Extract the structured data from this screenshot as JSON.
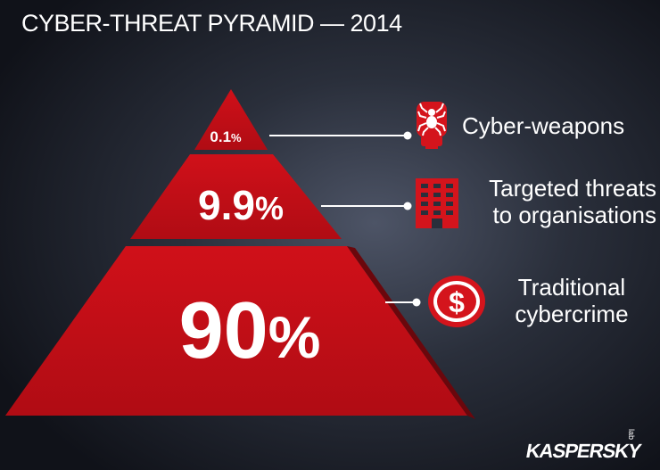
{
  "title": "CYBER-THREAT PYRAMID — 2014",
  "tiers": [
    {
      "value": "0.1",
      "unit": "%",
      "label_lines": [
        "Cyber-weapons"
      ],
      "icon": "spider-icon"
    },
    {
      "value": "9.9",
      "unit": "%",
      "label_lines": [
        "Targeted threats",
        "to organisations"
      ],
      "icon": "building-icon"
    },
    {
      "value": "90",
      "unit": "%",
      "label_lines": [
        "Traditional",
        "cybercrime"
      ],
      "icon": "dollar-icon"
    }
  ],
  "brand": {
    "name": "KASPERSKY",
    "sub": "lab"
  },
  "colors": {
    "pyramid": "#c8101a",
    "pyramid_dark": "#8a0a10",
    "icon_red": "#d4141c",
    "connector": "#ffffff"
  }
}
